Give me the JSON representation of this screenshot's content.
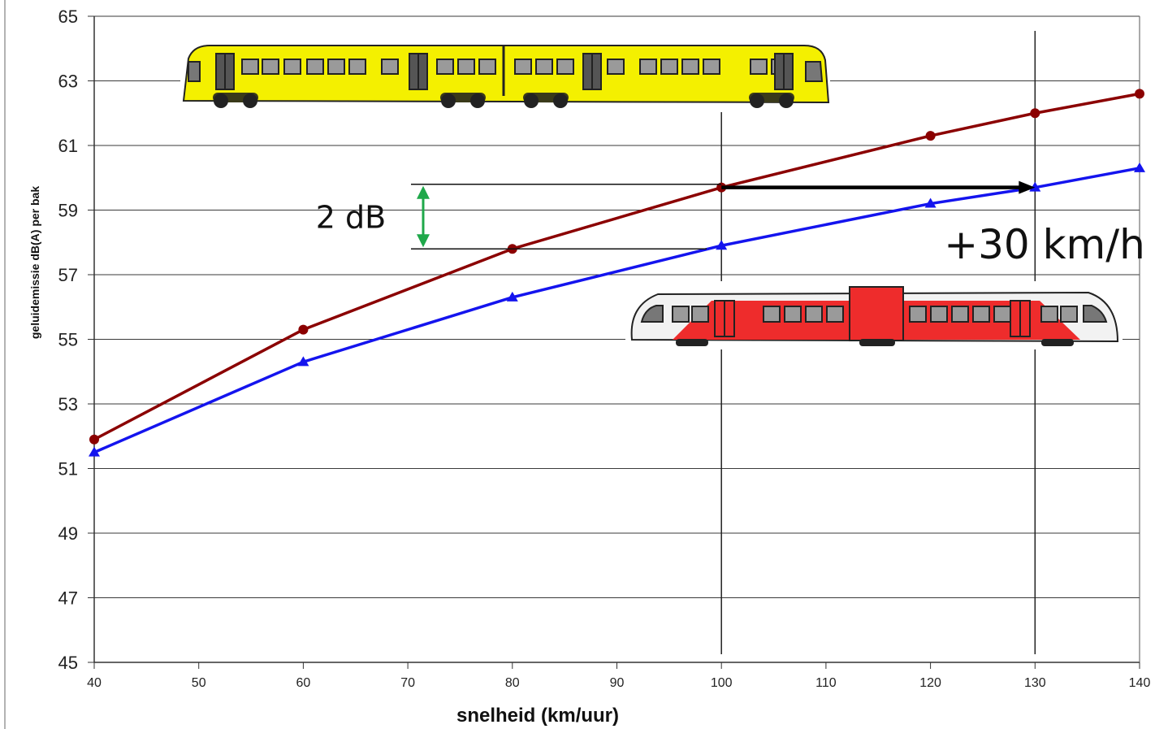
{
  "chart_data": {
    "type": "line",
    "title": "",
    "xlabel": "snelheid (km/uur)",
    "ylabel": "geluidemissie  dB(A) per bak",
    "xlim": [
      40,
      140
    ],
    "ylim": [
      45,
      65
    ],
    "xticks": [
      40,
      50,
      60,
      70,
      80,
      90,
      100,
      110,
      120,
      130,
      140
    ],
    "yticks": [
      45,
      47,
      49,
      51,
      53,
      55,
      57,
      59,
      61,
      63,
      65
    ],
    "grid": "horizontal",
    "series": [
      {
        "color": "#8b0000",
        "marker": "circle",
        "x": [
          40,
          60,
          80,
          100,
          120,
          130,
          140
        ],
        "y": [
          51.9,
          55.3,
          57.8,
          59.7,
          61.3,
          62.0,
          62.6
        ]
      },
      {
        "color": "#1414ee",
        "marker": "triangle",
        "x": [
          40,
          60,
          80,
          100,
          120,
          130,
          140
        ],
        "y": [
          51.5,
          54.3,
          56.3,
          57.9,
          59.2,
          59.7,
          60.3
        ]
      }
    ],
    "annotations": {
      "db_label": "2 dB",
      "db_range": [
        57.8,
        59.8
      ],
      "speed_label": "+30 km/h",
      "speed_arrow": {
        "from_x": 100,
        "to_x": 130,
        "y": 59.7
      },
      "guide_x": [
        100,
        130
      ]
    },
    "illustrations": {
      "yellow_train_color": "#f4f000",
      "red_train_color": "#ee2c2c"
    }
  }
}
